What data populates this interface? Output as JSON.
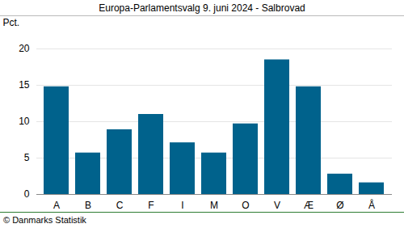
{
  "chart_data": {
    "type": "bar",
    "title": "Europa-Parlamentsvalg 9. juni 2024 - Salbrovad",
    "y_label": "Pct.",
    "caption": "© Danmarks Statistik",
    "categories": [
      "A",
      "B",
      "C",
      "F",
      "I",
      "M",
      "O",
      "V",
      "Æ",
      "Ø",
      "Å"
    ],
    "values": [
      14.8,
      5.7,
      8.9,
      11.0,
      7.1,
      5.7,
      9.7,
      18.5,
      14.8,
      2.8,
      1.6
    ],
    "color": "#00628c",
    "ylim": [
      0,
      20
    ],
    "yticks": [
      0,
      5,
      10,
      15,
      20
    ],
    "grid": true
  }
}
